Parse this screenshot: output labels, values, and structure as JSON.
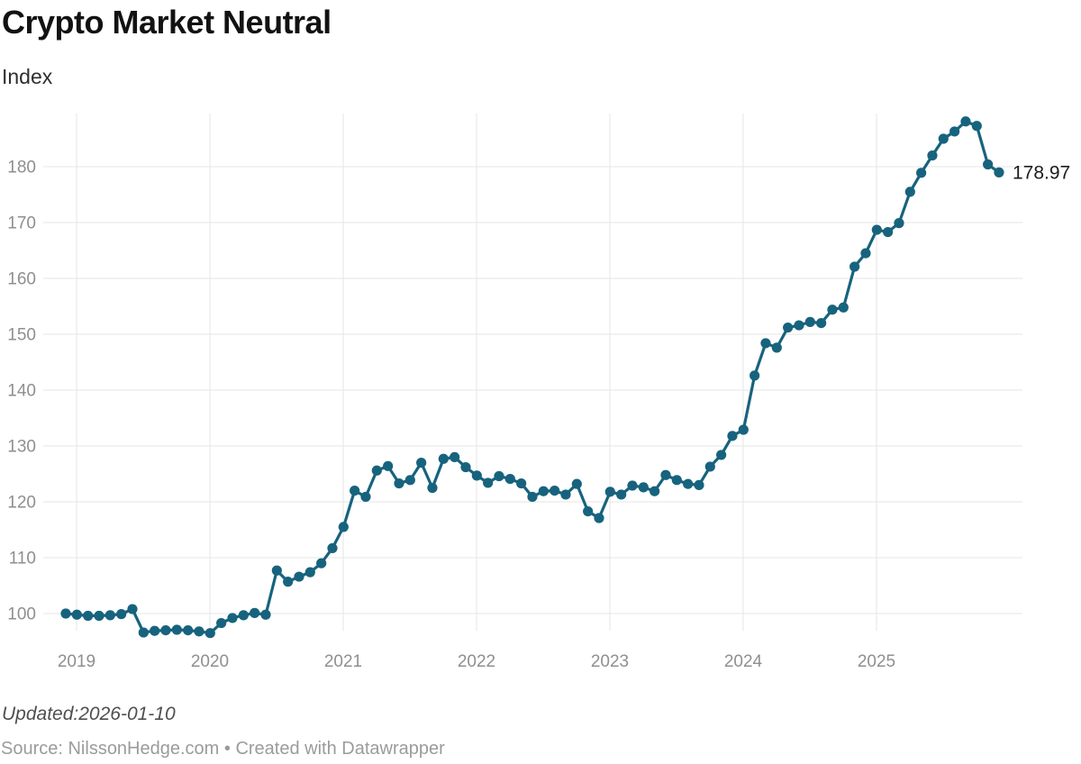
{
  "header": {
    "title": "Crypto Market Neutral",
    "subtitle": "Index"
  },
  "footer": {
    "updated": "Updated:2026-01-10",
    "source": "Source: NilssonHedge.com • Created with Datawrapper"
  },
  "colors": {
    "line": "#17637e",
    "grid": "#e4e4e4",
    "tick_text": "#8f8f8f",
    "value_label_text": "#1c1c1c"
  },
  "chart_data": {
    "type": "line",
    "title": "Crypto Market Neutral",
    "ylabel": "Index",
    "frequency": "monthly",
    "x_start": "2018-12",
    "x_end": "2025-12",
    "x_tick_labels": [
      "2019",
      "2020",
      "2021",
      "2022",
      "2023",
      "2024",
      "2025"
    ],
    "y_ticks": [
      100,
      110,
      120,
      130,
      140,
      150,
      160,
      170,
      180
    ],
    "ylim": [
      93,
      191
    ],
    "grid": true,
    "legend": "none",
    "last_value_label": "178.97",
    "line_color": "#17637e",
    "grid_color": "#e4e4e4",
    "values": [
      100.0,
      99.8,
      99.6,
      99.6,
      99.7,
      99.9,
      100.8,
      96.6,
      96.9,
      97.0,
      97.1,
      97.0,
      96.8,
      96.5,
      98.3,
      99.2,
      99.7,
      100.1,
      99.8,
      107.7,
      105.7,
      106.6,
      107.4,
      109.0,
      111.7,
      115.5,
      122.0,
      120.9,
      125.6,
      126.4,
      123.3,
      123.9,
      127.0,
      122.5,
      127.7,
      128.0,
      126.2,
      124.7,
      123.4,
      124.6,
      124.1,
      123.3,
      120.9,
      121.9,
      122.0,
      121.3,
      123.2,
      118.3,
      117.1,
      121.8,
      121.3,
      122.9,
      122.6,
      121.9,
      124.8,
      123.9,
      123.2,
      123.0,
      126.3,
      128.4,
      131.8,
      132.9,
      142.6,
      148.4,
      147.6,
      151.2,
      151.6,
      152.2,
      152.0,
      154.4,
      154.8,
      162.1,
      164.5,
      168.7,
      168.3,
      169.9,
      175.5,
      178.9,
      182.0,
      185.0,
      186.3,
      188.1,
      187.3,
      180.4,
      178.97
    ]
  }
}
